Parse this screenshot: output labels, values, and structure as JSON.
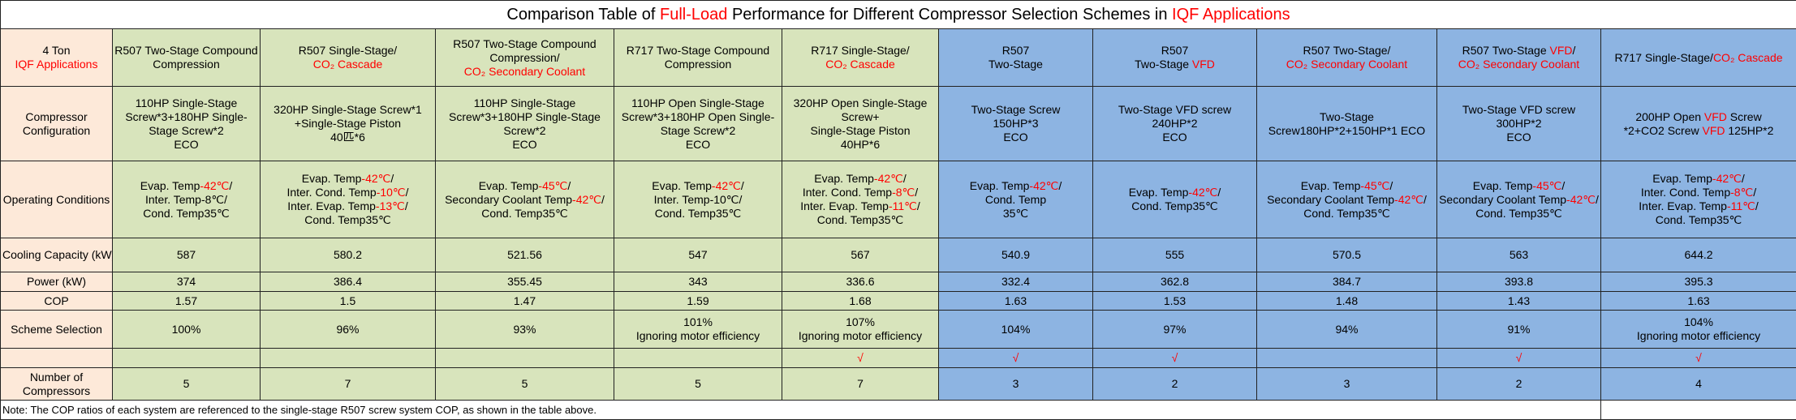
{
  "title": [
    "Comparison Table of ",
    {
      "text": "Full-Load",
      "color": "red"
    },
    " Performance for Different Compressor Selection Schemes in  ",
    {
      "text": "IQF Applications",
      "color": "red"
    }
  ],
  "table": {
    "rows": [
      {
        "label": [
          "4 Ton",
          [
            {
              "text": "IQF Applications",
              "color": "red"
            }
          ]
        ],
        "cells": [
          [
            "R507 Two-Stage Compound",
            "Compression"
          ],
          [
            "R507 Single-Stage/",
            [
              {
                "text": "CO₂ Cascade",
                "color": "red"
              }
            ]
          ],
          [
            "R507 Two-Stage Compound",
            "Compression/",
            [
              {
                "text": "CO₂ Secondary Coolant",
                "color": "red"
              }
            ]
          ],
          [
            "R717 Two-Stage Compound",
            "Compression"
          ],
          [
            "R717 Single-Stage/",
            [
              {
                "text": "CO₂ Cascade",
                "color": "red"
              }
            ]
          ],
          [
            "R507",
            "Two-Stage"
          ],
          [
            "R507",
            [
              "Two-Stage ",
              {
                "text": "VFD",
                "color": "red"
              }
            ]
          ],
          [
            "R507 Two-Stage/",
            [
              {
                "text": "CO₂ Secondary Coolant",
                "color": "red"
              }
            ]
          ],
          [
            [
              "R507 Two-Stage ",
              {
                "text": "VFD",
                "color": "red"
              },
              "/"
            ],
            [
              {
                "text": "CO₂ Secondary Coolant",
                "color": "red"
              }
            ]
          ],
          [
            [
              "R717 Single-Stage/",
              {
                "text": "CO₂ Cascade",
                "color": "red"
              }
            ]
          ]
        ]
      },
      {
        "label": [
          "Compressor",
          "Configuration"
        ],
        "cells": [
          [
            "110HP Single-Stage",
            "Screw*3+180HP Single-",
            "Stage Screw*2",
            "ECO"
          ],
          [
            "320HP Single-Stage Screw*1",
            "+Single-Stage Piston",
            "40匹*6"
          ],
          [
            "110HP Single-Stage",
            "Screw*3+180HP Single-Stage",
            "Screw*2",
            "ECO"
          ],
          [
            "110HP Open Single-Stage",
            "Screw*3+180HP Open Single-",
            "Stage Screw*2",
            "ECO"
          ],
          [
            "320HP Open Single-Stage",
            "Screw+",
            "Single-Stage Piston",
            "40HP*6"
          ],
          [
            "Two-Stage Screw",
            "150HP*3",
            "ECO"
          ],
          [
            "Two-Stage VFD screw",
            "240HP*2",
            "ECO"
          ],
          [
            "Two-Stage",
            "Screw180HP*2+150HP*1 ECO"
          ],
          [
            "Two-Stage VFD screw",
            "300HP*2",
            "ECO"
          ],
          [
            [
              "200HP Open ",
              {
                "text": "VFD",
                "color": "red"
              },
              " Screw"
            ],
            [
              "*2+CO2 Screw ",
              {
                "text": "VFD",
                "color": "red"
              },
              " 125HP*2"
            ]
          ]
        ]
      },
      {
        "label": "Operating Conditions",
        "cells": [
          [
            [
              "Evap. Temp",
              {
                "text": "-42℃",
                "color": "red"
              },
              "/"
            ],
            "Inter. Temp-8℃/",
            "Cond. Temp35℃"
          ],
          [
            [
              "Evap. Temp",
              {
                "text": "-42℃",
                "color": "red"
              },
              "/"
            ],
            [
              "Inter. Cond. Temp",
              {
                "text": "-10℃",
                "color": "red"
              },
              "/"
            ],
            [
              "Inter. Evap. Temp",
              {
                "text": "-13℃",
                "color": "red"
              },
              "/"
            ],
            "Cond. Temp35℃"
          ],
          [
            [
              "Evap. Temp",
              {
                "text": "-45℃",
                "color": "red"
              },
              "/"
            ],
            [
              "Secondary Coolant Temp",
              {
                "text": "-42℃",
                "color": "red"
              },
              "/"
            ],
            "Cond. Temp35℃"
          ],
          [
            [
              "Evap. Temp",
              {
                "text": "-42℃",
                "color": "red"
              },
              "/"
            ],
            "Inter. Temp-10℃/",
            "Cond. Temp35℃"
          ],
          [
            [
              "Evap. Temp",
              {
                "text": "-42℃",
                "color": "red"
              },
              "/"
            ],
            [
              "Inter. Cond. Temp",
              {
                "text": "-8℃",
                "color": "red"
              },
              "/"
            ],
            [
              "Inter. Evap. Temp",
              {
                "text": "-11℃",
                "color": "red"
              },
              "/"
            ],
            "Cond. Temp35℃"
          ],
          [
            [
              "Evap. Temp",
              {
                "text": "-42℃",
                "color": "red"
              },
              "/"
            ],
            "Cond. Temp",
            "35℃"
          ],
          [
            [
              "Evap. Temp",
              {
                "text": "-42℃",
                "color": "red"
              },
              "/"
            ],
            "Cond. Temp35℃"
          ],
          [
            [
              "Evap. Temp",
              {
                "text": "-45℃",
                "color": "red"
              },
              "/"
            ],
            [
              "Secondary Coolant Temp",
              {
                "text": "-42℃",
                "color": "red"
              },
              "/"
            ],
            "Cond. Temp35℃"
          ],
          [
            [
              "Evap. Temp",
              {
                "text": "-45℃",
                "color": "red"
              },
              "/"
            ],
            [
              "Secondary Coolant Temp",
              {
                "text": "-42℃",
                "color": "red"
              },
              "/"
            ],
            "Cond. Temp35℃"
          ],
          [
            [
              "Evap. Temp",
              {
                "text": "-42℃",
                "color": "red"
              },
              "/"
            ],
            [
              "Inter. Cond. Temp",
              {
                "text": "-8℃",
                "color": "red"
              },
              "/"
            ],
            [
              "Inter. Evap. Temp",
              {
                "text": "-11℃",
                "color": "red"
              },
              "/"
            ],
            "Cond. Temp35℃"
          ]
        ]
      },
      {
        "label": "Cooling Capacity (kW)",
        "cells": [
          "587",
          "580.2",
          "521.56",
          "547",
          "567",
          "540.9",
          "555",
          "570.5",
          "563",
          "644.2"
        ]
      },
      {
        "label": "Power (kW)",
        "cells": [
          "374",
          "386.4",
          "355.45",
          "343",
          "336.6",
          "332.4",
          "362.8",
          "384.7",
          "393.8",
          "395.3"
        ]
      },
      {
        "label": "COP",
        "cells": [
          "1.57",
          "1.5",
          "1.47",
          "1.59",
          "1.68",
          "1.63",
          "1.53",
          "1.48",
          "1.43",
          "1.63"
        ]
      },
      {
        "label": "Scheme Selection",
        "cells": [
          "100%",
          "96%",
          "93%",
          [
            "101%",
            "Ignoring motor efficiency"
          ],
          [
            "107%",
            "Ignoring motor efficiency"
          ],
          "104%",
          "97%",
          "94%",
          "91%",
          [
            "104%",
            "Ignoring motor efficiency"
          ]
        ]
      },
      {
        "label": null,
        "cells": [
          null,
          null,
          null,
          null,
          {
            "text": "√",
            "color": "red"
          },
          {
            "text": "√",
            "color": "red"
          },
          {
            "text": "√",
            "color": "red"
          },
          null,
          {
            "text": "√",
            "color": "red"
          },
          {
            "text": "√",
            "color": "red"
          }
        ]
      },
      {
        "label": [
          "Number of",
          "Compressors"
        ],
        "cells": [
          "5",
          "7",
          "5",
          "5",
          "7",
          "3",
          "2",
          "3",
          "2",
          "4"
        ]
      }
    ]
  },
  "note": "Note: The COP ratios of each system are referenced to the single-stage R507 screw system COP, as shown in the table above."
}
